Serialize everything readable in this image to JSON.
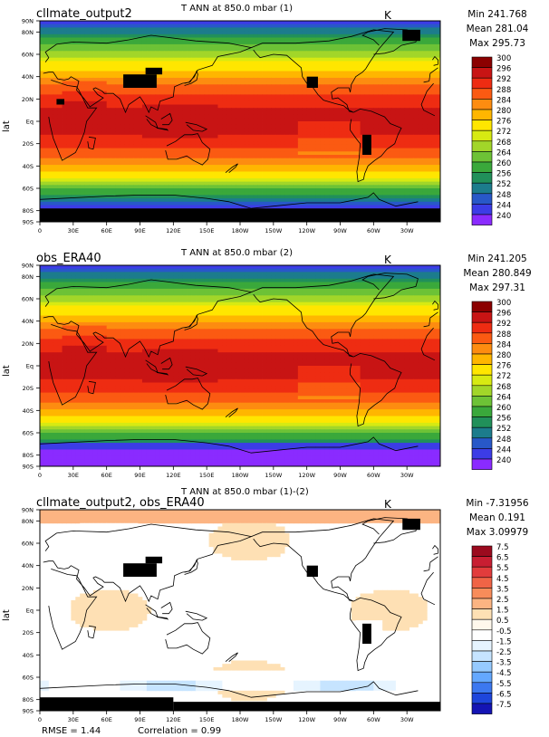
{
  "panels": [
    {
      "id": "model",
      "left_title": "cllmate_output2",
      "center_title": "T ANN at 850.0 mbar (1)",
      "units": "K",
      "min": "Min 241.768",
      "mean": "Mean 281.04",
      "max": "Max 295.73",
      "ylabel": "lat",
      "colorbar_levels": [
        "300",
        "296",
        "292",
        "288",
        "284",
        "280",
        "276",
        "272",
        "268",
        "264",
        "260",
        "256",
        "252",
        "248",
        "244",
        "240"
      ],
      "colorbar_colors": [
        "#8b0000",
        "#c81414",
        "#ee2c12",
        "#fb5a12",
        "#fd8c10",
        "#ffb600",
        "#ffe600",
        "#d7ea12",
        "#a2d629",
        "#6dc236",
        "#3aa83b",
        "#21905a",
        "#1c7c8c",
        "#2858c8",
        "#3c3ce6",
        "#8a2bff"
      ]
    },
    {
      "id": "obs",
      "left_title": "obs_ERA40",
      "center_title": "T ANN at 850.0 mbar (2)",
      "units": "K",
      "min": "Min 241.205",
      "mean": "Mean 280.849",
      "max": "Max 297.31",
      "ylabel": "lat",
      "colorbar_levels": [
        "300",
        "296",
        "292",
        "288",
        "284",
        "280",
        "276",
        "272",
        "268",
        "264",
        "260",
        "256",
        "252",
        "248",
        "244",
        "240"
      ],
      "colorbar_colors": [
        "#8b0000",
        "#c81414",
        "#ee2c12",
        "#fb5a12",
        "#fd8c10",
        "#ffb600",
        "#ffe600",
        "#d7ea12",
        "#a2d629",
        "#6dc236",
        "#3aa83b",
        "#21905a",
        "#1c7c8c",
        "#2858c8",
        "#3c3ce6",
        "#8a2bff"
      ]
    },
    {
      "id": "diff",
      "left_title": "cllmate_output2, obs_ERA40",
      "center_title": "T ANN at 850.0 mbar (1)-(2)",
      "units": "K",
      "min": "Min -7.31956",
      "mean": "Mean 0.191",
      "max": "Max 3.09979",
      "ylabel": "lat",
      "colorbar_levels": [
        "7.5",
        "6.5",
        "5.5",
        "4.5",
        "3.5",
        "2.5",
        "1.5",
        "0.5",
        "-0.5",
        "-1.5",
        "-2.5",
        "-3.5",
        "-4.5",
        "-5.5",
        "-6.5",
        "-7.5"
      ],
      "colorbar_colors": [
        "#9b0a1e",
        "#c81e32",
        "#e23c3c",
        "#f06446",
        "#f88c5a",
        "#fcb482",
        "#fee0b4",
        "#fff8ec",
        "#ffffff",
        "#e6f4ff",
        "#c6e4ff",
        "#96caff",
        "#64a8ff",
        "#3c78f0",
        "#1e46dc",
        "#1414b4"
      ]
    }
  ],
  "lat_ticks": [
    "90N",
    "80N",
    "60N",
    "40N",
    "20N",
    "Eq",
    "20S",
    "40S",
    "60S",
    "80S",
    "90S"
  ],
  "lon_ticks": [
    "0",
    "30E",
    "60E",
    "90E",
    "120E",
    "150E",
    "180W",
    "150W",
    "120W",
    "90W",
    "60W",
    "30W"
  ],
  "footer": {
    "rmse": "RMSE = 1.44",
    "correlation": "Correlation = 0.99"
  }
}
